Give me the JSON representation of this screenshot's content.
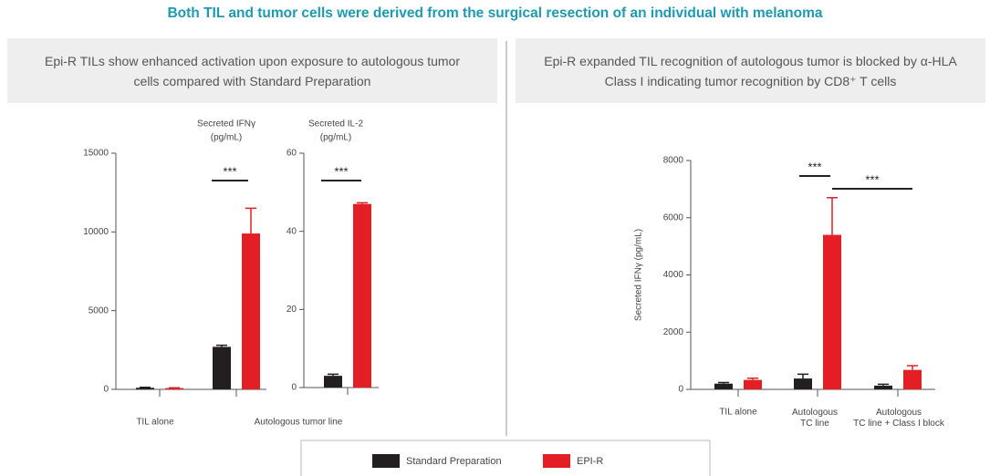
{
  "title": "Both TIL and tumor cells were derived from the surgical resection of an individual with melanoma",
  "panels": [
    {
      "title": "Epi-R TILs show enhanced activation upon exposure to autologous tumor cells compared with Standard Preparation"
    },
    {
      "title": "Epi-R expanded TIL recognition of autologous tumor is blocked by α-HLA Class I indicating tumor recognition by CD8⁺ T cells"
    }
  ],
  "chart_data": [
    {
      "type": "bar",
      "title": "Secreted IFNγ",
      "subtitle": "(pg/mL)",
      "categories": [
        "TIL alone",
        "Autologous tumor line"
      ],
      "series": [
        {
          "name": "Standard Preparation",
          "color": "#231f20",
          "values": [
            100,
            2700
          ],
          "errors": [
            30,
            100
          ]
        },
        {
          "name": "EPI-R",
          "color": "#e31e24",
          "values": [
            80,
            9900
          ],
          "errors": [
            20,
            1600
          ]
        }
      ],
      "ylim": [
        0,
        15000
      ],
      "yticks": [
        0,
        5000,
        10000,
        15000
      ],
      "annotations": [
        "***"
      ]
    },
    {
      "type": "bar",
      "title": "Secreted IL-2",
      "subtitle": "(pg/mL)",
      "categories": [
        null
      ],
      "series": [
        {
          "color": "#231f20",
          "values": [
            3
          ],
          "errors": [
            0.4
          ]
        },
        {
          "color": "#e31e24",
          "values": [
            47
          ],
          "errors": [
            0.3
          ]
        }
      ],
      "ylim": [
        0,
        60
      ],
      "yticks": [
        0,
        20,
        40,
        60
      ],
      "annotations": [
        "***"
      ]
    },
    {
      "type": "bar",
      "ylabel": "Secreted IFNγ (pg/mL)",
      "categories": [
        "TIL alone",
        "Autologous\nTC line",
        "Autologous\nTC line + Class I block"
      ],
      "series": [
        {
          "color": "#231f20",
          "values": [
            200,
            380,
            130
          ],
          "errors": [
            40,
            150,
            50
          ]
        },
        {
          "color": "#e31e24",
          "values": [
            330,
            5400,
            680
          ],
          "errors": [
            60,
            1300,
            150
          ]
        }
      ],
      "ylim": [
        0,
        8000
      ],
      "yticks": [
        0,
        2000,
        4000,
        6000,
        8000
      ],
      "annotations": [
        "***",
        "***"
      ]
    }
  ]
}
